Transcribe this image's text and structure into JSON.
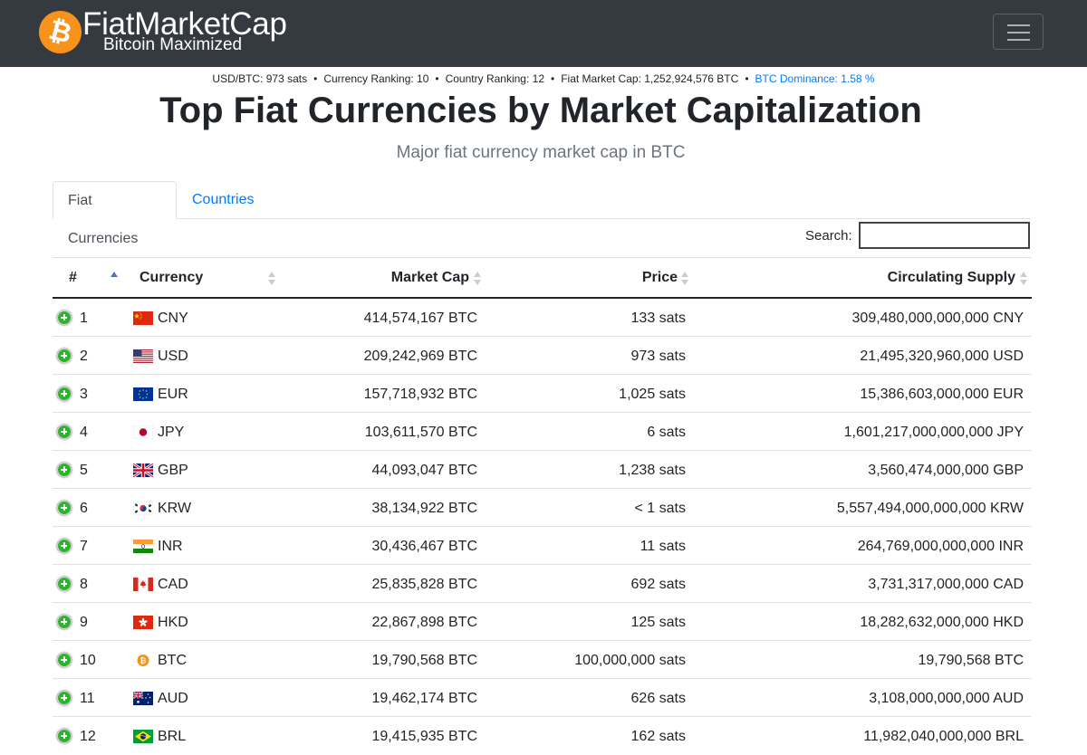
{
  "brand": {
    "name": "FiatMarketCap",
    "tagline": "Bitcoin Maximized",
    "logo_glyph": "₿",
    "logo_color": "#f7931a"
  },
  "stats": {
    "usd_btc": "USD/BTC: 973 sats",
    "currency_ranking": "Currency Ranking: 10",
    "country_ranking": "Country Ranking: 12",
    "fiat_market_cap": "Fiat Market Cap: 1,252,924,576 BTC",
    "btc_dominance": "BTC Dominance: 1.58 %",
    "separator": "•"
  },
  "page": {
    "title": "Top Fiat Currencies by Market Capitalization",
    "subtitle": "Major fiat currency market cap in BTC"
  },
  "tabs": [
    {
      "label": "Fiat Currencies",
      "active": true
    },
    {
      "label": "Countries",
      "active": false
    }
  ],
  "search": {
    "label": "Search:",
    "value": ""
  },
  "table": {
    "columns": [
      "#",
      "Currency",
      "Market Cap",
      "Price",
      "Circulating Supply"
    ],
    "sorted_column": "#",
    "rows": [
      {
        "rank": "1",
        "flag": "CN",
        "code": "CNY",
        "market_cap": "414,574,167 BTC",
        "price": "133 sats",
        "supply": "309,480,000,000,000 CNY"
      },
      {
        "rank": "2",
        "flag": "US",
        "code": "USD",
        "market_cap": "209,242,969 BTC",
        "price": "973 sats",
        "supply": "21,495,320,960,000 USD"
      },
      {
        "rank": "3",
        "flag": "EU",
        "code": "EUR",
        "market_cap": "157,718,932 BTC",
        "price": "1,025 sats",
        "supply": "15,386,603,000,000 EUR"
      },
      {
        "rank": "4",
        "flag": "JP",
        "code": "JPY",
        "market_cap": "103,611,570 BTC",
        "price": "6 sats",
        "supply": "1,601,217,000,000,000 JPY"
      },
      {
        "rank": "5",
        "flag": "GB",
        "code": "GBP",
        "market_cap": "44,093,047 BTC",
        "price": "1,238 sats",
        "supply": "3,560,474,000,000 GBP"
      },
      {
        "rank": "6",
        "flag": "KR",
        "code": "KRW",
        "market_cap": "38,134,922 BTC",
        "price": "< 1 sats",
        "supply": "5,557,494,000,000,000 KRW"
      },
      {
        "rank": "7",
        "flag": "IN",
        "code": "INR",
        "market_cap": "30,436,467 BTC",
        "price": "11 sats",
        "supply": "264,769,000,000,000 INR"
      },
      {
        "rank": "8",
        "flag": "CA",
        "code": "CAD",
        "market_cap": "25,835,828 BTC",
        "price": "692 sats",
        "supply": "3,731,317,000,000 CAD"
      },
      {
        "rank": "9",
        "flag": "HK",
        "code": "HKD",
        "market_cap": "22,867,898 BTC",
        "price": "125 sats",
        "supply": "18,282,632,000,000 HKD"
      },
      {
        "rank": "10",
        "flag": "BTC",
        "code": "BTC",
        "market_cap": "19,790,568 BTC",
        "price": "100,000,000 sats",
        "supply": "19,790,568 BTC"
      },
      {
        "rank": "11",
        "flag": "AU",
        "code": "AUD",
        "market_cap": "19,462,174 BTC",
        "price": "626 sats",
        "supply": "3,108,000,000,000 AUD"
      },
      {
        "rank": "12",
        "flag": "BR",
        "code": "BRL",
        "market_cap": "19,415,935 BTC",
        "price": "162 sats",
        "supply": "11,982,040,000,000 BRL"
      }
    ]
  },
  "colors": {
    "navbar": "#343a40",
    "link": "#007bff",
    "expand_button": "#31b131",
    "sort_active": "#4d6fd3"
  }
}
